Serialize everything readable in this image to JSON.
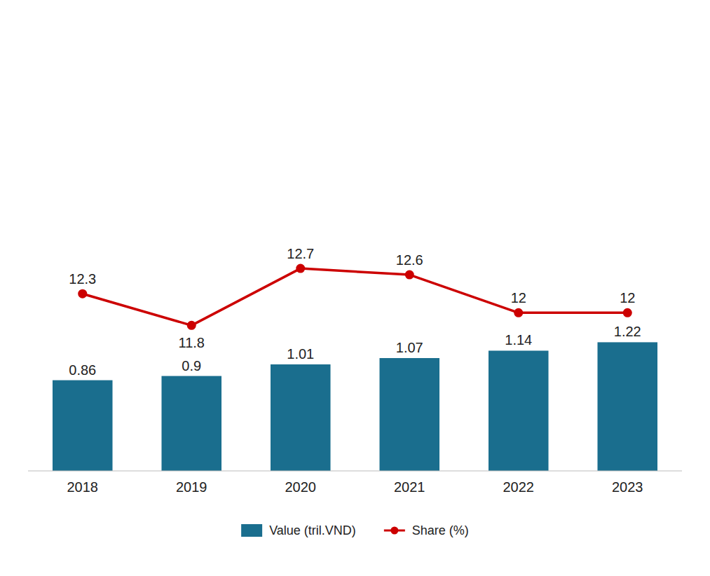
{
  "chart_data": {
    "type": "bar",
    "categories": [
      "2018",
      "2019",
      "2020",
      "2021",
      "2022",
      "2023"
    ],
    "series": [
      {
        "name": "Value (tril.VND)",
        "type": "bar",
        "color": "#1a6e8e",
        "values": [
          0.86,
          0.9,
          1.01,
          1.07,
          1.14,
          1.22
        ]
      },
      {
        "name": "Share (%)",
        "type": "line",
        "axis": "y2",
        "color": "#cc0000",
        "marker": "circle",
        "values": [
          12.3,
          11.8,
          12.7,
          12.6,
          12.0,
          12.0
        ]
      }
    ],
    "ylim": [
      0,
      4.2
    ],
    "y2lim": [
      9.5,
      16.5
    ],
    "data_labels": true,
    "tick_labels": "x",
    "grid": false,
    "legend": "bottom"
  }
}
